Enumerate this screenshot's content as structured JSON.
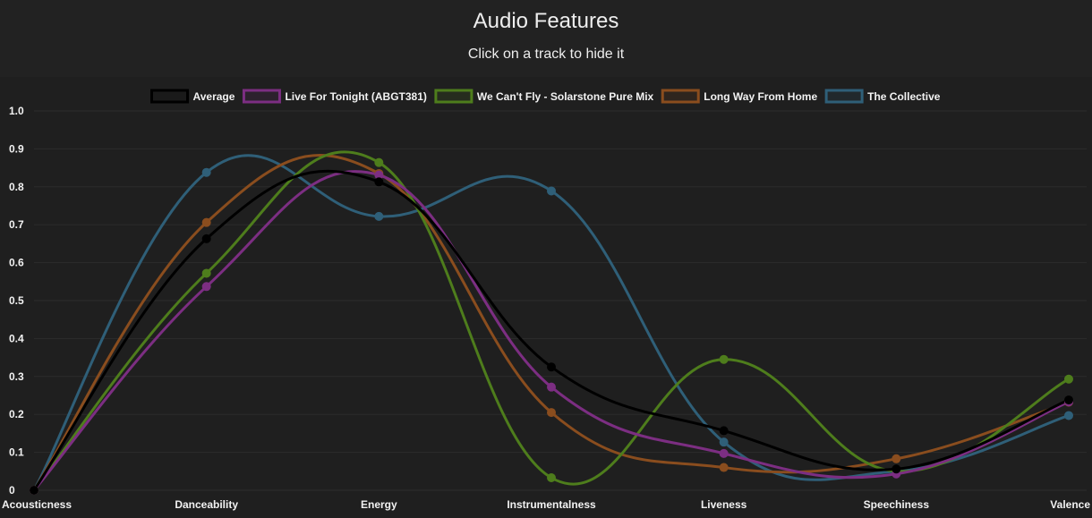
{
  "header": {
    "title": "Audio Features",
    "subtitle": "Click on a track to hide it"
  },
  "chart_data": {
    "type": "line",
    "title": "Audio Features",
    "subtitle": "Click on a track to hide it",
    "categories": [
      "Acousticness",
      "Danceability",
      "Energy",
      "Instrumentalness",
      "Liveness",
      "Speechiness",
      "Valence"
    ],
    "ylim": [
      0,
      1.0
    ],
    "yticks": [
      "0",
      "0.1",
      "0.2",
      "0.3",
      "0.4",
      "0.5",
      "0.6",
      "0.7",
      "0.8",
      "0.9",
      "1.0"
    ],
    "grid": true,
    "legend_position": "top",
    "series": [
      {
        "name": "Average",
        "color": "#000000",
        "values": [
          0.0,
          0.663,
          0.813,
          0.325,
          0.157,
          0.056,
          0.238
        ]
      },
      {
        "name": "Live For Tonight (ABGT381)",
        "color": "#7c2e82",
        "values": [
          0.0,
          0.537,
          0.831,
          0.272,
          0.097,
          0.043,
          0.233
        ]
      },
      {
        "name": "We Can't Fly - Solarstone Pure Mix",
        "color": "#4e7d1c",
        "values": [
          0.0,
          0.572,
          0.864,
          0.033,
          0.345,
          0.05,
          0.293
        ]
      },
      {
        "name": "Long Way From Home",
        "color": "#8a4d1e",
        "values": [
          0.0,
          0.706,
          0.835,
          0.205,
          0.06,
          0.083,
          0.232
        ]
      },
      {
        "name": "The Collective",
        "color": "#2f5f78",
        "values": [
          0.0,
          0.838,
          0.722,
          0.789,
          0.127,
          0.05,
          0.197
        ]
      }
    ]
  }
}
